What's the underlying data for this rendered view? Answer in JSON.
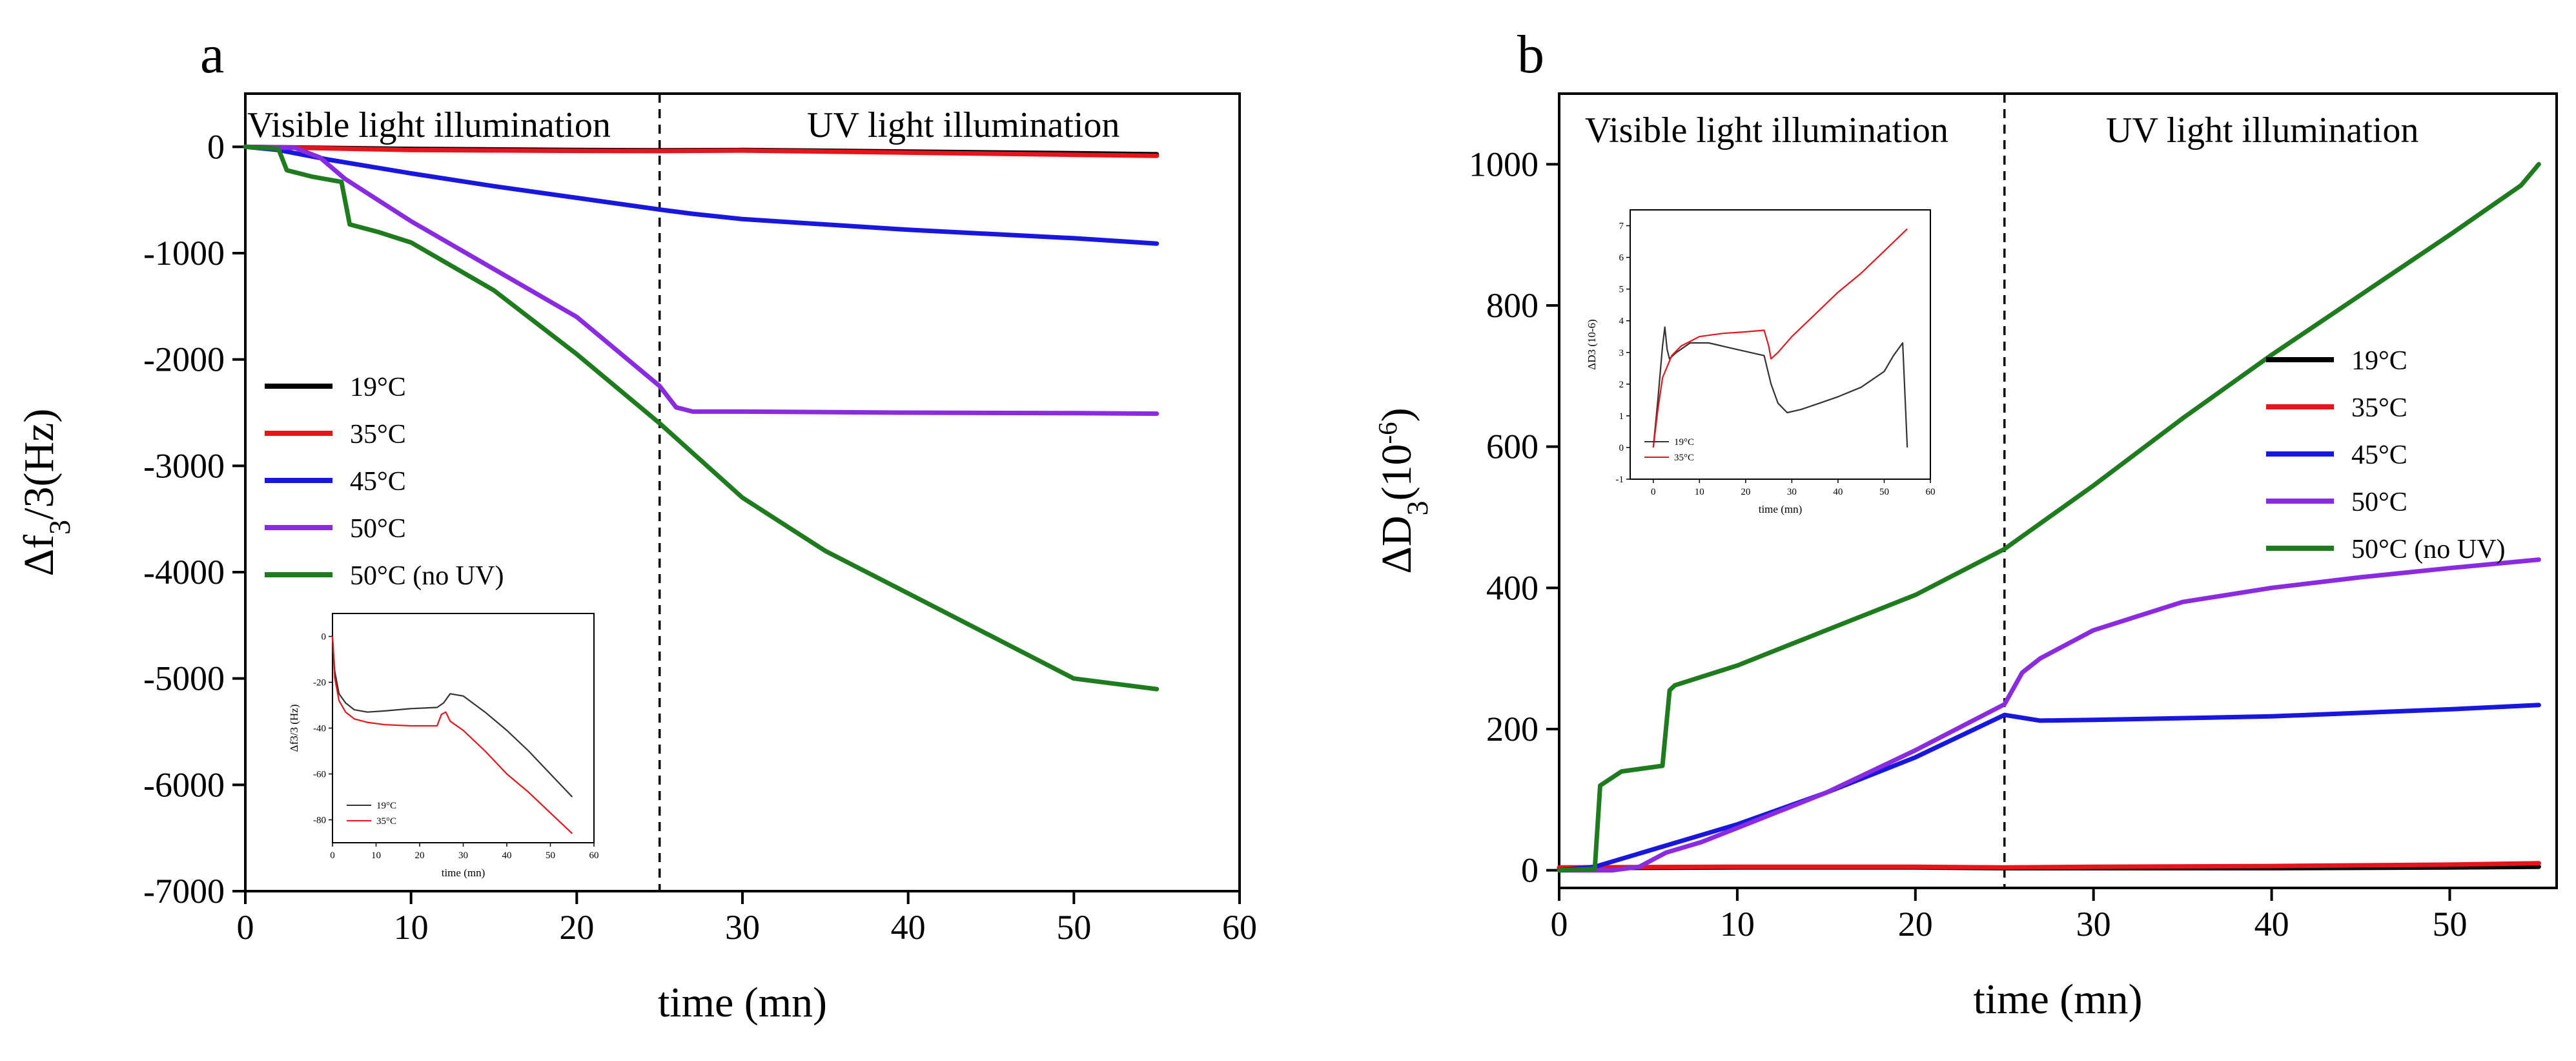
{
  "chart_data": [
    {
      "panel": "a",
      "type": "line",
      "xlabel": "time (mn)",
      "ylabel": "Δf3/3(Hz)",
      "xlim": [
        0,
        60
      ],
      "ylim": [
        -7000,
        500
      ],
      "x_ticks": [
        0,
        10,
        20,
        30,
        40,
        50,
        60
      ],
      "y_ticks": [
        0,
        -1000,
        -2000,
        -3000,
        -4000,
        -5000,
        -6000,
        -7000
      ],
      "annotations": [
        "Visible light illumination",
        "UV light illumination"
      ],
      "vline_x": 25,
      "legend_position": "middle-left",
      "series": [
        {
          "name": "19°C",
          "color": "#000000",
          "x": [
            0,
            5,
            10,
            20,
            25,
            30,
            40,
            50,
            55
          ],
          "values": [
            0,
            -10,
            -20,
            -30,
            -33,
            -30,
            -45,
            -60,
            -70
          ]
        },
        {
          "name": "35°C",
          "color": "#e8141b",
          "x": [
            0,
            5,
            10,
            20,
            25,
            30,
            40,
            50,
            55
          ],
          "values": [
            0,
            -15,
            -30,
            -38,
            -40,
            -35,
            -55,
            -75,
            -85
          ]
        },
        {
          "name": "45°C",
          "color": "#1717e0",
          "x": [
            0,
            2,
            5,
            10,
            15,
            20,
            25,
            27,
            30,
            40,
            50,
            55
          ],
          "values": [
            0,
            -30,
            -120,
            -250,
            -370,
            -480,
            -590,
            -630,
            -680,
            -780,
            -860,
            -910
          ]
        },
        {
          "name": "50°C",
          "color": "#8a2be2",
          "x": [
            0,
            3,
            4.5,
            6,
            8,
            10,
            15,
            20,
            25,
            26,
            27,
            30,
            40,
            50,
            55
          ],
          "values": [
            0,
            -10,
            -100,
            -300,
            -500,
            -700,
            -1150,
            -1600,
            -2250,
            -2450,
            -2490,
            -2490,
            -2500,
            -2505,
            -2510
          ]
        },
        {
          "name": "50°C (no UV)",
          "color": "#1e7b1e",
          "x": [
            0,
            2,
            2.5,
            4,
            5.8,
            6.3,
            8,
            10,
            15,
            20,
            25,
            30,
            35,
            40,
            45,
            50,
            55
          ],
          "values": [
            0,
            -20,
            -220,
            -280,
            -330,
            -730,
            -800,
            -900,
            -1350,
            -1950,
            -2600,
            -3300,
            -3800,
            -4200,
            -4600,
            -5000,
            -5100
          ]
        }
      ],
      "inset": {
        "ylabel": "Δf3/3 (Hz)",
        "xlabel": "time (mn)",
        "xlim": [
          0,
          60
        ],
        "ylim": [
          -90,
          10
        ],
        "x_ticks": [
          0,
          10,
          20,
          30,
          40,
          50,
          60
        ],
        "y_ticks": [
          0,
          -20,
          -40,
          -60,
          -80
        ],
        "series": [
          {
            "name": "19°C",
            "color": "#333333",
            "x": [
              0,
              0.5,
              1.5,
              3,
              5,
              8,
              12,
              18,
              24,
              25.5,
              27,
              30,
              35,
              40,
              45,
              50,
              55
            ],
            "values": [
              0,
              -15,
              -25,
              -29,
              -32,
              -33,
              -32.5,
              -31.5,
              -31,
              -29,
              -25,
              -26,
              -33,
              -41,
              -50,
              -60,
              -70
            ]
          },
          {
            "name": "35°C",
            "color": "#e8141b",
            "x": [
              0,
              0.5,
              1.5,
              3,
              5,
              8,
              12,
              18,
              24,
              25,
              26,
              27,
              30,
              35,
              40,
              45,
              50,
              55
            ],
            "values": [
              0,
              -18,
              -28,
              -33,
              -36,
              -37.5,
              -38.5,
              -39,
              -39,
              -34,
              -33,
              -37,
              -41,
              -50,
              -60,
              -68,
              -77,
              -86
            ]
          }
        ]
      }
    },
    {
      "panel": "b",
      "type": "line",
      "xlabel": "time (mn)",
      "ylabel": "ΔD3(10-6)",
      "xlim": [
        0,
        56
      ],
      "ylim": [
        -25,
        1100
      ],
      "x_ticks": [
        0,
        10,
        20,
        30,
        40,
        50
      ],
      "y_ticks": [
        0,
        200,
        400,
        600,
        800,
        1000
      ],
      "annotations": [
        "Visible light illumination",
        "UV light illumination"
      ],
      "vline_x": 25,
      "legend_position": "middle-right",
      "series": [
        {
          "name": "19°C",
          "color": "#000000",
          "x": [
            0,
            10,
            20,
            25,
            30,
            40,
            50,
            55
          ],
          "values": [
            3,
            4,
            4,
            3,
            3,
            3,
            4,
            5
          ]
        },
        {
          "name": "35°C",
          "color": "#e8141b",
          "x": [
            0,
            10,
            20,
            25,
            30,
            40,
            50,
            55
          ],
          "values": [
            4,
            5,
            5,
            4,
            5,
            6,
            8,
            10
          ]
        },
        {
          "name": "45°C",
          "color": "#1717e0",
          "x": [
            0,
            2,
            4,
            6,
            10,
            15,
            20,
            25,
            27,
            30,
            40,
            50,
            55
          ],
          "values": [
            0,
            5,
            20,
            35,
            65,
            110,
            160,
            220,
            212,
            213,
            218,
            228,
            234
          ]
        },
        {
          "name": "50°C",
          "color": "#8a2be2",
          "x": [
            0,
            3,
            4.5,
            6,
            8,
            10,
            15,
            20,
            25,
            26,
            27,
            30,
            35,
            40,
            45,
            50,
            55
          ],
          "values": [
            0,
            0,
            5,
            25,
            40,
            60,
            110,
            170,
            235,
            280,
            300,
            340,
            380,
            400,
            415,
            428,
            440
          ]
        },
        {
          "name": "50°C (no UV)",
          "color": "#1e7b1e",
          "x": [
            0,
            2,
            2.3,
            3.5,
            5.8,
            6.2,
            6.5,
            10,
            15,
            20,
            25,
            30,
            35,
            40,
            45,
            50,
            54,
            55
          ],
          "values": [
            0,
            2,
            120,
            140,
            148,
            255,
            262,
            290,
            340,
            390,
            455,
            545,
            640,
            730,
            815,
            900,
            970,
            1000
          ]
        }
      ],
      "inset": {
        "ylabel": "ΔD3 (10-6)",
        "xlabel": "time (mn)",
        "xlim": [
          -5,
          60
        ],
        "ylim": [
          -1,
          7.5
        ],
        "x_ticks": [
          0,
          10,
          20,
          30,
          40,
          50,
          60
        ],
        "y_ticks": [
          -1,
          0,
          1,
          2,
          3,
          4,
          5,
          6,
          7
        ],
        "series": [
          {
            "name": "19°C",
            "color": "#333333",
            "x": [
              0,
              1,
              2,
              2.5,
              3,
              3.5,
              5,
              8,
              12,
              18,
              24,
              25.5,
              27,
              29,
              32,
              36,
              40,
              45,
              50,
              52,
              54,
              55
            ],
            "values": [
              0,
              1.5,
              3.2,
              3.8,
              3.1,
              2.8,
              3.0,
              3.3,
              3.3,
              3.1,
              2.9,
              2.0,
              1.4,
              1.1,
              1.2,
              1.4,
              1.6,
              1.9,
              2.4,
              2.9,
              3.3,
              0
            ]
          },
          {
            "name": "35°C",
            "color": "#e8141b",
            "x": [
              0,
              1,
              2,
              4,
              6,
              10,
              15,
              20,
              24,
              25,
              25.5,
              27,
              30,
              35,
              40,
              45,
              50,
              55
            ],
            "values": [
              0,
              1.2,
              2.2,
              2.9,
              3.2,
              3.5,
              3.6,
              3.65,
              3.7,
              3.2,
              2.8,
              3.0,
              3.5,
              4.2,
              4.9,
              5.5,
              6.2,
              6.9
            ]
          }
        ]
      }
    }
  ]
}
